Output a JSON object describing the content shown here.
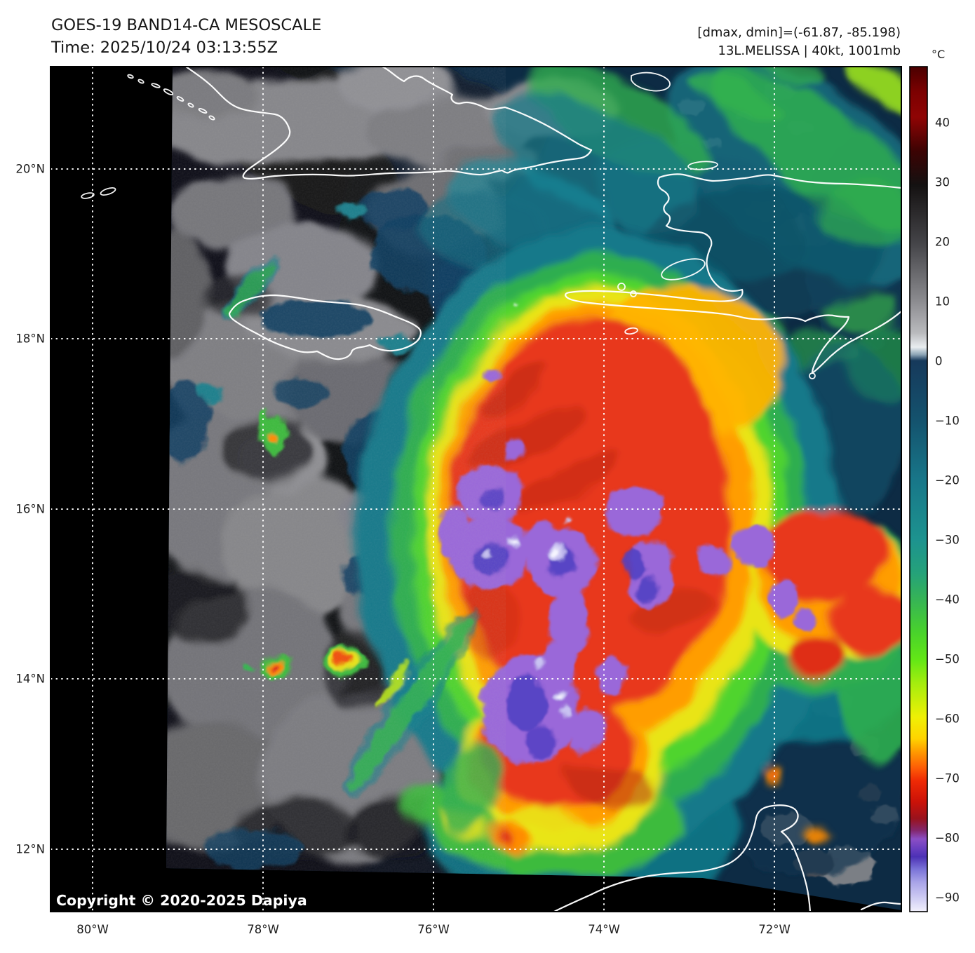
{
  "header": {
    "title_line1": "GOES-19 BAND14-CA MESOSCALE",
    "title_line2": "Time: 2025/10/24 03:13:55Z",
    "meta_line1": "[dmax, dmin]=(-61.87, -85.198)",
    "meta_line2": "13L.MELISSA | 40kt, 1001mb"
  },
  "colorbar": {
    "unit": "°C",
    "ticks": [
      "40",
      "30",
      "20",
      "10",
      "0",
      "−10",
      "−20",
      "−30",
      "−40",
      "−50",
      "−60",
      "−70",
      "−80",
      "−90"
    ],
    "gradient_stops": [
      [
        0,
        "#4a0000"
      ],
      [
        3,
        "#7c0101"
      ],
      [
        6,
        "#8f0404"
      ],
      [
        10,
        "#3c0303"
      ],
      [
        14,
        "#141111"
      ],
      [
        21,
        "#454549"
      ],
      [
        27.8,
        "#8c8c90"
      ],
      [
        31.5,
        "#b9babd"
      ],
      [
        33.2,
        "#e9edf0"
      ],
      [
        34.1,
        "#8aa2b4"
      ],
      [
        34.8,
        "#16395b"
      ],
      [
        42,
        "#14536e"
      ],
      [
        49,
        "#187789"
      ],
      [
        56,
        "#1d938f"
      ],
      [
        60,
        "#25a279"
      ],
      [
        63.2,
        "#37b554"
      ],
      [
        67,
        "#49d32b"
      ],
      [
        70.2,
        "#63e716"
      ],
      [
        73,
        "#a5ed0e"
      ],
      [
        77,
        "#eff005"
      ],
      [
        79.5,
        "#ffd400"
      ],
      [
        81,
        "#ff9d00"
      ],
      [
        83,
        "#fd5c06"
      ],
      [
        84.5,
        "#ef2a05"
      ],
      [
        87,
        "#cb1208"
      ],
      [
        89,
        "#99121d"
      ],
      [
        90.4,
        "#83276d"
      ],
      [
        91.4,
        "#8b4ec5"
      ],
      [
        92.5,
        "#6a3fc0"
      ],
      [
        93.5,
        "#4c31b5"
      ],
      [
        95,
        "#7b74d8"
      ],
      [
        96.5,
        "#a8a3e8"
      ],
      [
        98.4,
        "#cfccf3"
      ],
      [
        100,
        "#f2f1fc"
      ]
    ]
  },
  "axes": {
    "x_ticks": [
      "80°W",
      "78°W",
      "76°W",
      "74°W",
      "72°W"
    ],
    "y_ticks": [
      "20°N",
      "18°N",
      "16°N",
      "14°N",
      "12°N"
    ]
  },
  "map": {
    "copyright": "Copyright © 2020-2025 Dapiya"
  },
  "palette": {
    "ocean_navy": "#0d2b44",
    "cloud_gray": "#8a8a8d",
    "outer_teal": "#13798a",
    "green": "#2fae4f",
    "bright_green": "#54d829",
    "yellow": "#e9e414",
    "orange": "#ff9d00",
    "red": "#e8391c",
    "dark_red": "#bc2413",
    "cold_purple": "#9a67d9",
    "cold_indigo": "#5240c2",
    "cold_lavender": "#c9c3f2",
    "cold_white": "#f5f4fe",
    "coastline": "#ffffff",
    "grid": "#ffffff"
  }
}
